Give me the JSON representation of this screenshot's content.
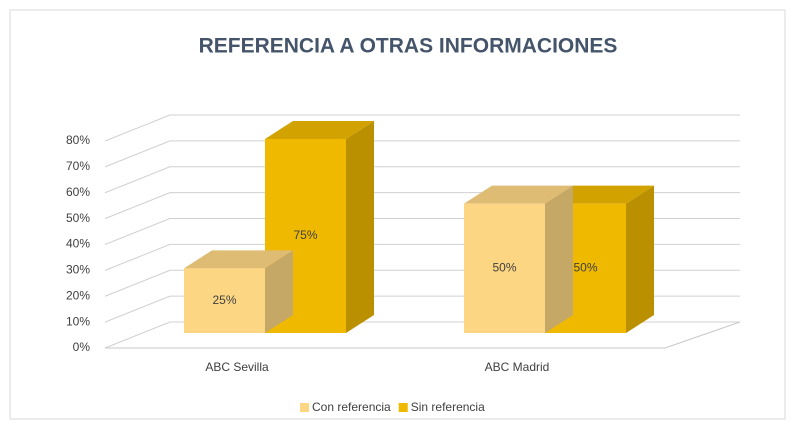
{
  "chart_data": {
    "type": "bar3d",
    "title": "REFERENCIA A OTRAS INFORMACIONES",
    "categories": [
      "ABC Sevilla",
      "ABC Madrid"
    ],
    "series": [
      {
        "name": "Con referencia",
        "color": "#fcd683",
        "values": [
          25,
          50
        ],
        "value_labels": [
          "25%",
          "50%"
        ]
      },
      {
        "name": "Sin referencia",
        "color": "#efb900",
        "values": [
          75,
          50
        ],
        "value_labels": [
          "75%",
          "50%"
        ]
      }
    ],
    "ylim": [
      0,
      80
    ],
    "yticks": [
      {
        "value": 0,
        "label": "0%"
      },
      {
        "value": 10,
        "label": "10%"
      },
      {
        "value": 20,
        "label": "20%"
      },
      {
        "value": 30,
        "label": "30%"
      },
      {
        "value": 40,
        "label": "40%"
      },
      {
        "value": 50,
        "label": "50%"
      },
      {
        "value": 60,
        "label": "60%"
      },
      {
        "value": 70,
        "label": "70%"
      },
      {
        "value": 80,
        "label": "80%"
      }
    ],
    "grid": true,
    "legend": "bottom"
  }
}
